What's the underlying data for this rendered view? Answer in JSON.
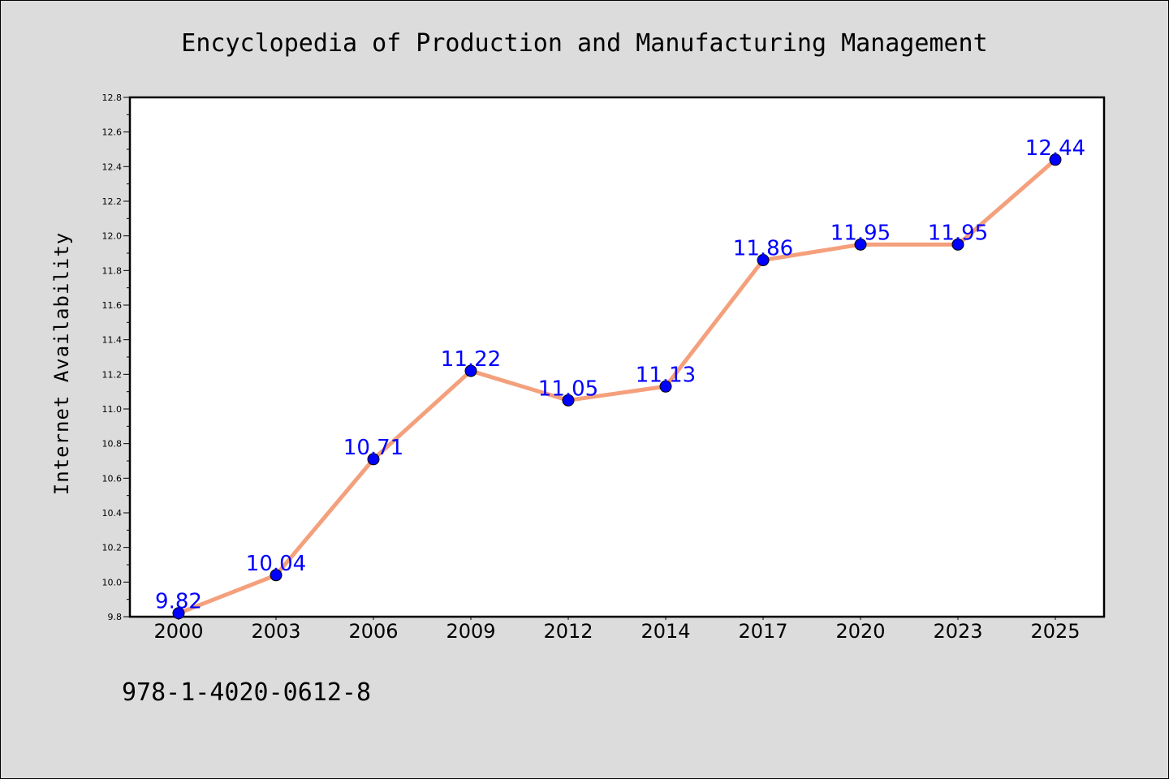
{
  "chart_data": {
    "type": "line",
    "title": "Encyclopedia of Production and Manufacturing Management",
    "xlabel": "",
    "ylabel": "Internet Availability",
    "categories": [
      "2000",
      "2003",
      "2006",
      "2009",
      "2012",
      "2014",
      "2017",
      "2020",
      "2023",
      "2025"
    ],
    "values": [
      9.82,
      10.04,
      10.71,
      11.22,
      11.05,
      11.13,
      11.86,
      11.95,
      11.95,
      12.44
    ],
    "data_labels": [
      "9.82",
      "10.04",
      "10.71",
      "11.22",
      "11.05",
      "11.13",
      "11.86",
      "11.95",
      "11.95",
      "12.44"
    ],
    "ylim": [
      9.8,
      12.8
    ],
    "yticks": [
      "9.8",
      "10.0",
      "10.2",
      "10.4",
      "10.6",
      "10.8",
      "11.0",
      "11.2",
      "11.4",
      "11.6",
      "11.8",
      "12.0",
      "12.2",
      "12.4",
      "12.6",
      "12.8"
    ],
    "grid": false,
    "legend": "none",
    "colors": {
      "line": "#f4a07c",
      "marker": "#0000ff",
      "label": "#0000ff",
      "plot_bg": "#ffffff",
      "figure_bg": "#dcdcdc"
    }
  },
  "footer": {
    "isbn": "978-1-4020-0612-8"
  }
}
